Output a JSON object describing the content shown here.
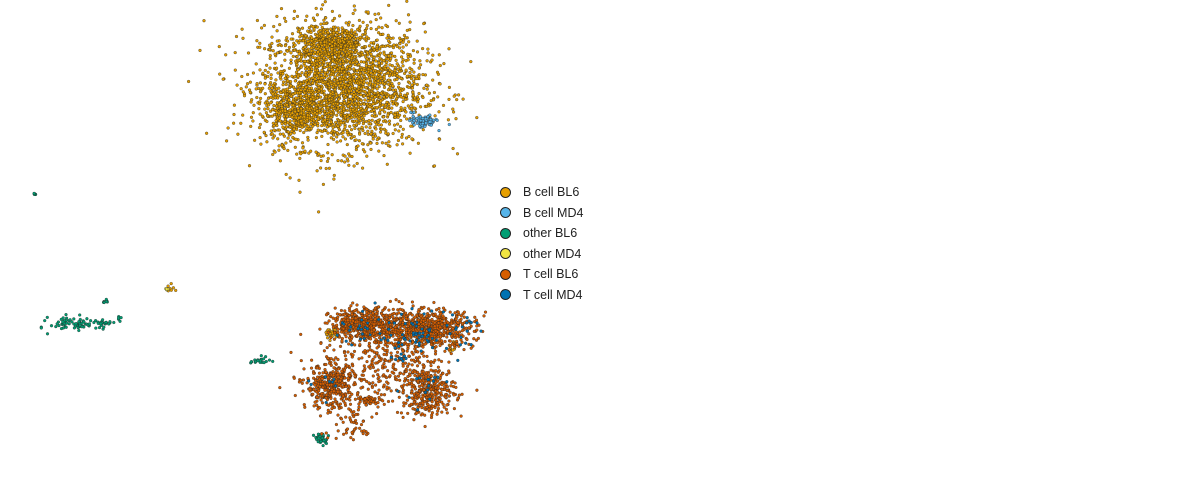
{
  "chart_data": {
    "type": "scatter",
    "title": "",
    "xlabel": "",
    "ylabel": "",
    "axes_visible": false,
    "grid": false,
    "legend_placement": "right",
    "xlim": [
      0,
      100
    ],
    "ylim": [
      0,
      100
    ],
    "series": [
      {
        "name": "B cell BL6",
        "color": "#E69F00",
        "clusters": [
          {
            "cx": 28.5,
            "cy": 82,
            "sx": 3.4,
            "sy": 6.5,
            "n": 2400
          },
          {
            "cx": 24.5,
            "cy": 77,
            "sx": 1.2,
            "sy": 2.5,
            "n": 350
          },
          {
            "cx": 27.8,
            "cy": 91,
            "sx": 1.6,
            "sy": 1.6,
            "n": 400
          },
          {
            "cx": 23.6,
            "cy": 69.3,
            "sx": 0.15,
            "sy": 0.3,
            "n": 6
          },
          {
            "cx": 14.1,
            "cy": 39.8,
            "sx": 0.2,
            "sy": 0.4,
            "n": 8
          },
          {
            "cx": 27.6,
            "cy": 30.5,
            "sx": 0.4,
            "sy": 0.6,
            "n": 25
          },
          {
            "cx": 37.7,
            "cy": 27.6,
            "sx": 0.2,
            "sy": 0.8,
            "n": 12
          }
        ]
      },
      {
        "name": "B cell MD4",
        "color": "#56B4E9",
        "clusters": [
          {
            "cx": 35.3,
            "cy": 74.6,
            "sx": 0.5,
            "sy": 0.6,
            "n": 90
          },
          {
            "cx": 34.4,
            "cy": 76.6,
            "sx": 0.1,
            "sy": 0.2,
            "n": 4
          }
        ]
      },
      {
        "name": "other BL6",
        "color": "#009E73",
        "clusters": [
          {
            "cx": 6.2,
            "cy": 32.6,
            "sx": 1.0,
            "sy": 0.8,
            "n": 70
          },
          {
            "cx": 8.5,
            "cy": 32.6,
            "sx": 0.5,
            "sy": 0.3,
            "n": 25
          },
          {
            "cx": 8.8,
            "cy": 37.3,
            "sx": 0.1,
            "sy": 0.4,
            "n": 8
          },
          {
            "cx": 9.9,
            "cy": 33.6,
            "sx": 0.1,
            "sy": 0.3,
            "n": 5
          },
          {
            "cx": 2.9,
            "cy": 59.5,
            "sx": 0.1,
            "sy": 0.2,
            "n": 6
          },
          {
            "cx": 21.7,
            "cy": 24.8,
            "sx": 0.4,
            "sy": 0.4,
            "n": 20
          },
          {
            "cx": 26.8,
            "cy": 8.6,
            "sx": 0.3,
            "sy": 0.6,
            "n": 30
          }
        ]
      },
      {
        "name": "other MD4",
        "color": "#F0E442",
        "clusters": [
          {
            "cx": 14.0,
            "cy": 39.6,
            "sx": 0.15,
            "sy": 0.3,
            "n": 4
          }
        ]
      },
      {
        "name": "T cell BL6",
        "color": "#D55E00",
        "clusters": [
          {
            "cx": 30.5,
            "cy": 32.5,
            "sx": 1.5,
            "sy": 1.6,
            "n": 450
          },
          {
            "cx": 35.5,
            "cy": 31.5,
            "sx": 2.0,
            "sy": 2.0,
            "n": 650
          },
          {
            "cx": 27.5,
            "cy": 19.5,
            "sx": 1.0,
            "sy": 2.2,
            "n": 330
          },
          {
            "cx": 35.8,
            "cy": 18.5,
            "sx": 1.1,
            "sy": 2.5,
            "n": 330
          },
          {
            "cx": 30.5,
            "cy": 24.0,
            "sx": 2.3,
            "sy": 5.0,
            "n": 260
          },
          {
            "cx": 30.6,
            "cy": 16.5,
            "sx": 0.5,
            "sy": 0.5,
            "n": 35
          },
          {
            "cx": 29.0,
            "cy": 11.5,
            "sx": 1.2,
            "sy": 1.8,
            "n": 45
          },
          {
            "cx": 34.0,
            "cy": 24.0,
            "sx": 1.2,
            "sy": 4.0,
            "n": 80
          }
        ]
      },
      {
        "name": "T cell MD4",
        "color": "#0072B2",
        "clusters": [
          {
            "cx": 35.5,
            "cy": 30.5,
            "sx": 1.8,
            "sy": 2.0,
            "n": 70
          },
          {
            "cx": 30.5,
            "cy": 31.5,
            "sx": 1.4,
            "sy": 1.6,
            "n": 25
          },
          {
            "cx": 33.3,
            "cy": 25.3,
            "sx": 0.3,
            "sy": 0.4,
            "n": 10
          },
          {
            "cx": 35.5,
            "cy": 19.5,
            "sx": 1.0,
            "sy": 2.0,
            "n": 15
          },
          {
            "cx": 27.5,
            "cy": 20.0,
            "sx": 0.8,
            "sy": 1.6,
            "n": 8
          }
        ]
      }
    ]
  }
}
